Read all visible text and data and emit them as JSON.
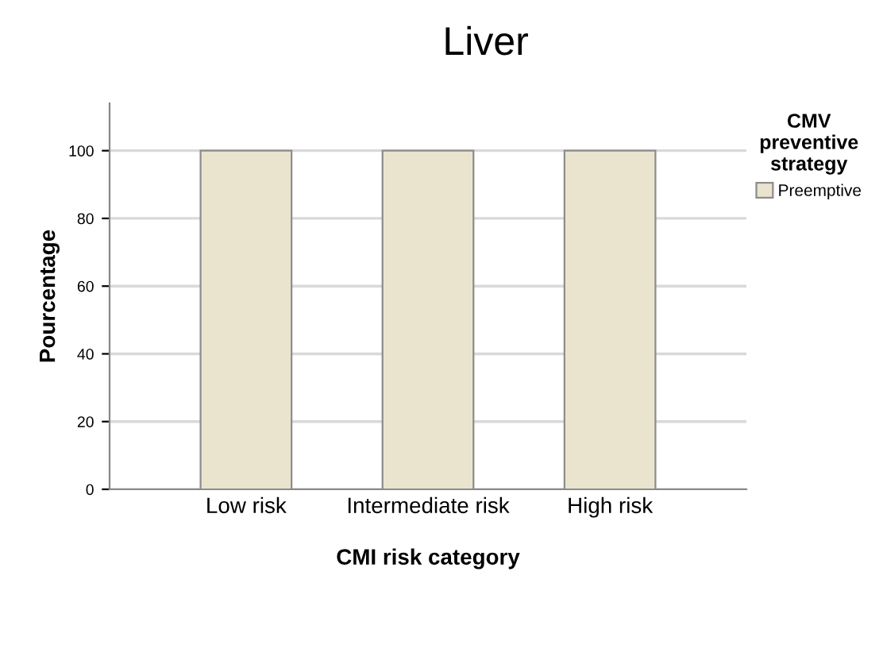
{
  "chart_data": {
    "type": "bar",
    "title": "Liver",
    "xlabel": "CMI risk category",
    "ylabel": "Pourcentage",
    "legend_title": "CMV\npreventive\nstrategy",
    "categories": [
      "Low risk",
      "Intermediate risk",
      "High risk"
    ],
    "series": [
      {
        "name": "Preemptive",
        "color": "#eae4cf",
        "values": [
          100,
          100,
          100
        ]
      }
    ],
    "ylim": [
      0,
      114
    ],
    "yticks": [
      0,
      20,
      40,
      60,
      80,
      100
    ],
    "grid": "y",
    "legend": "top right"
  }
}
